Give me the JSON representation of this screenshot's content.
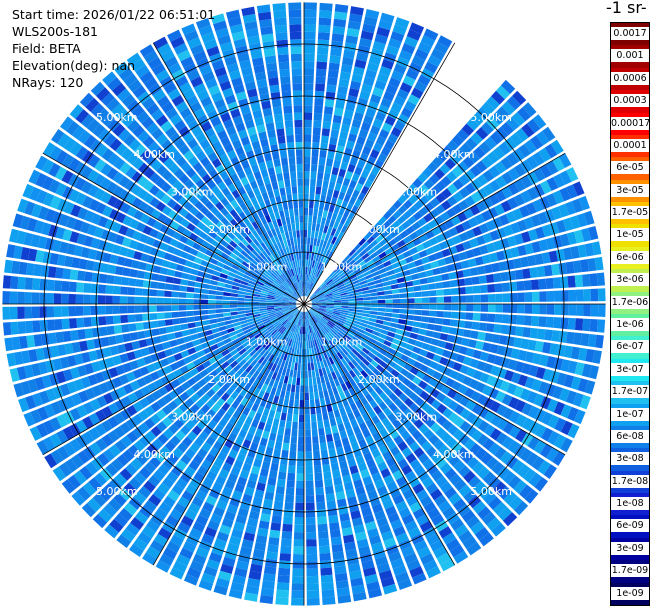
{
  "info": {
    "start_time": "Start time: 2026/01/22 06:51:01",
    "instrument": "WLS200s-181",
    "field": "Field: BETA",
    "elevation": "Elevation(deg): nan",
    "nrays": "NRays: 120"
  },
  "colorbar": {
    "title": "-1 sr-",
    "ticks": [
      "0.0017",
      "0.001",
      "0.0006",
      "0.0003",
      "0.00017",
      "0.0001",
      "6e-05",
      "3e-05",
      "1.7e-05",
      "1e-05",
      "6e-06",
      "3e-06",
      "1.7e-06",
      "1e-06",
      "6e-07",
      "3e-07",
      "1.7e-07",
      "1e-07",
      "6e-08",
      "3e-08",
      "1.7e-08",
      "1e-08",
      "6e-09",
      "3e-09",
      "1.7e-09",
      "1e-09"
    ],
    "colors": [
      "#7f0000",
      "#a00000",
      "#c00000",
      "#e00000",
      "#ff0000",
      "#ff3000",
      "#ff6000",
      "#ff9000",
      "#ffc000",
      "#f0e000",
      "#e8f020",
      "#c0f050",
      "#90f080",
      "#60f0a0",
      "#40f0d0",
      "#20e8f0",
      "#20c0f0",
      "#10a0f0",
      "#1080e8",
      "#1060e0",
      "#1040d8",
      "#1020d0",
      "#0010c0",
      "#0000a0",
      "#000080",
      "#000060"
    ]
  },
  "chart_data": {
    "type": "ppi-radar",
    "field": "BETA",
    "range_rings_km": [
      1,
      2,
      3,
      4,
      5
    ],
    "ring_labels": [
      "1.00km",
      "2.00km",
      "3.00km",
      "4.00km",
      "5.00km"
    ],
    "max_range_km": 5.8,
    "nrays": 120,
    "gap_azimuth_deg": [
      30,
      40
    ],
    "dominant_value_range": [
      1e-08,
      6e-08
    ],
    "colorbar_scale": "log",
    "colorbar_range": [
      1e-09,
      0.0017
    ]
  }
}
